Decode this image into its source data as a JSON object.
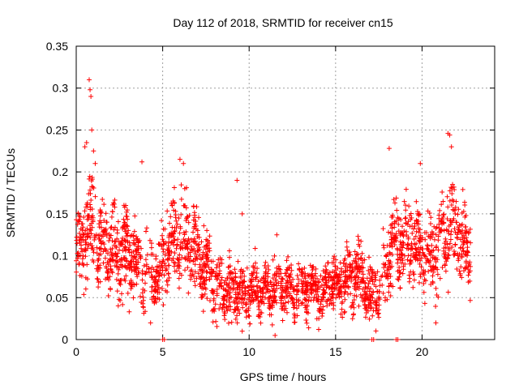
{
  "chart_data": {
    "type": "scatter",
    "title": "Day 112 of 2018, SRMTID for receiver cn15",
    "xlabel": "GPS time / hours",
    "ylabel": "SRMTID / TECUs",
    "xlim": [
      0,
      24.2
    ],
    "ylim": [
      0,
      0.35
    ],
    "x_ticks": [
      0,
      5,
      10,
      15,
      20
    ],
    "x_tick_labels": [
      "0",
      "5",
      "10",
      "15",
      "20"
    ],
    "y_ticks": [
      0,
      0.05,
      0.1,
      0.15,
      0.2,
      0.25,
      0.3,
      0.35
    ],
    "y_tick_labels": [
      "0",
      "0.05",
      "0.1",
      "0.15",
      "0.2",
      "0.25",
      "0.3",
      "0.35"
    ],
    "grid": true,
    "marker": "+",
    "marker_color": "#ff0000",
    "series": [
      {
        "name": "SRMTID",
        "x_range": [
          0,
          22.8
        ],
        "profile": [
          {
            "x": 0.0,
            "y": 0.105,
            "spread": 0.035
          },
          {
            "x": 0.5,
            "y": 0.125,
            "spread": 0.04
          },
          {
            "x": 0.9,
            "y": 0.135,
            "spread": 0.045
          },
          {
            "x": 1.3,
            "y": 0.12,
            "spread": 0.04
          },
          {
            "x": 2.0,
            "y": 0.105,
            "spread": 0.04
          },
          {
            "x": 3.0,
            "y": 0.1,
            "spread": 0.04
          },
          {
            "x": 4.0,
            "y": 0.085,
            "spread": 0.035
          },
          {
            "x": 4.5,
            "y": 0.075,
            "spread": 0.03
          },
          {
            "x": 5.0,
            "y": 0.09,
            "spread": 0.035
          },
          {
            "x": 5.8,
            "y": 0.125,
            "spread": 0.045
          },
          {
            "x": 6.5,
            "y": 0.12,
            "spread": 0.045
          },
          {
            "x": 7.3,
            "y": 0.09,
            "spread": 0.04
          },
          {
            "x": 8.0,
            "y": 0.065,
            "spread": 0.03
          },
          {
            "x": 9.0,
            "y": 0.06,
            "spread": 0.03
          },
          {
            "x": 10.0,
            "y": 0.058,
            "spread": 0.025
          },
          {
            "x": 11.0,
            "y": 0.06,
            "spread": 0.025
          },
          {
            "x": 12.0,
            "y": 0.062,
            "spread": 0.025
          },
          {
            "x": 13.0,
            "y": 0.06,
            "spread": 0.025
          },
          {
            "x": 14.0,
            "y": 0.058,
            "spread": 0.025
          },
          {
            "x": 15.0,
            "y": 0.065,
            "spread": 0.025
          },
          {
            "x": 15.8,
            "y": 0.08,
            "spread": 0.03
          },
          {
            "x": 16.5,
            "y": 0.075,
            "spread": 0.03
          },
          {
            "x": 17.0,
            "y": 0.05,
            "spread": 0.025
          },
          {
            "x": 17.6,
            "y": 0.065,
            "spread": 0.03
          },
          {
            "x": 18.3,
            "y": 0.11,
            "spread": 0.04
          },
          {
            "x": 19.0,
            "y": 0.12,
            "spread": 0.04
          },
          {
            "x": 19.6,
            "y": 0.11,
            "spread": 0.035
          },
          {
            "x": 20.3,
            "y": 0.1,
            "spread": 0.035
          },
          {
            "x": 21.0,
            "y": 0.11,
            "spread": 0.04
          },
          {
            "x": 21.6,
            "y": 0.14,
            "spread": 0.05
          },
          {
            "x": 22.2,
            "y": 0.12,
            "spread": 0.04
          },
          {
            "x": 22.8,
            "y": 0.1,
            "spread": 0.035
          }
        ],
        "outliers": [
          {
            "x": 0.75,
            "y": 0.31
          },
          {
            "x": 0.8,
            "y": 0.298
          },
          {
            "x": 0.85,
            "y": 0.29
          },
          {
            "x": 0.9,
            "y": 0.25
          },
          {
            "x": 0.6,
            "y": 0.235
          },
          {
            "x": 0.5,
            "y": 0.23
          },
          {
            "x": 1.0,
            "y": 0.225
          },
          {
            "x": 1.1,
            "y": 0.21
          },
          {
            "x": 6.0,
            "y": 0.215
          },
          {
            "x": 6.2,
            "y": 0.21
          },
          {
            "x": 3.8,
            "y": 0.212
          },
          {
            "x": 9.3,
            "y": 0.19
          },
          {
            "x": 9.6,
            "y": 0.15
          },
          {
            "x": 18.1,
            "y": 0.228
          },
          {
            "x": 21.5,
            "y": 0.246
          },
          {
            "x": 21.6,
            "y": 0.244
          },
          {
            "x": 21.7,
            "y": 0.23
          },
          {
            "x": 19.9,
            "y": 0.21
          },
          {
            "x": 11.6,
            "y": 0.125
          },
          {
            "x": 5.0,
            "y": 0.0
          },
          {
            "x": 5.1,
            "y": 0.0
          },
          {
            "x": 17.1,
            "y": 0.0
          },
          {
            "x": 17.2,
            "y": 0.0
          },
          {
            "x": 18.5,
            "y": 0.0
          },
          {
            "x": 18.6,
            "y": 0.0
          },
          {
            "x": 4.3,
            "y": 0.02
          },
          {
            "x": 9.6,
            "y": 0.01
          },
          {
            "x": 11.5,
            "y": 0.005
          },
          {
            "x": 20.8,
            "y": 0.02
          }
        ]
      }
    ]
  }
}
